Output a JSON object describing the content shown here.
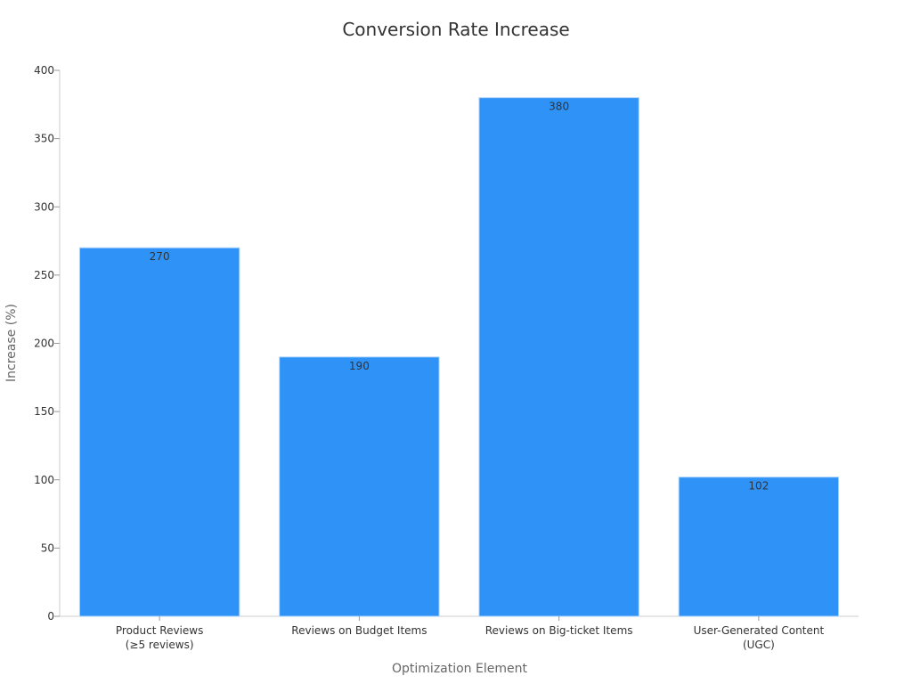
{
  "chart_data": {
    "type": "bar",
    "title": "Conversion Rate Increase",
    "xlabel": "Optimization Element",
    "ylabel": "Increase (%)",
    "categories": [
      [
        "Product Reviews",
        "(≥5 reviews)"
      ],
      [
        "Reviews on Budget Items"
      ],
      [
        "Reviews on Big-ticket Items"
      ],
      [
        "User-Generated Content",
        "(UGC)"
      ]
    ],
    "values": [
      270,
      190,
      380,
      102
    ],
    "data_labels": [
      "270",
      "190",
      "380",
      "102"
    ],
    "ylim": [
      0,
      400
    ],
    "yticks": [
      0,
      50,
      100,
      150,
      200,
      250,
      300,
      350,
      400
    ],
    "grid": false,
    "bar_color": "#2f92f7",
    "bar_edge_color": "#b0d4fa"
  }
}
